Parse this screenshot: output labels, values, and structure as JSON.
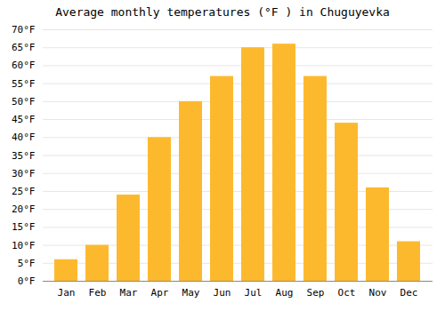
{
  "chart_data": {
    "type": "bar",
    "title": "Average monthly temperatures (°F ) in Chuguyevka",
    "categories": [
      "Jan",
      "Feb",
      "Mar",
      "Apr",
      "May",
      "Jun",
      "Jul",
      "Aug",
      "Sep",
      "Oct",
      "Nov",
      "Dec"
    ],
    "values": [
      6,
      10,
      24,
      40,
      50,
      57,
      65,
      66,
      57,
      44,
      26,
      11
    ],
    "color": "#FDB92E",
    "ylim": [
      0,
      70
    ],
    "yticks": [
      {
        "value": 0,
        "label": "0°F"
      },
      {
        "value": 5,
        "label": "5°F"
      },
      {
        "value": 10,
        "label": "10°F"
      },
      {
        "value": 15,
        "label": "15°F"
      },
      {
        "value": 20,
        "label": "20°F"
      },
      {
        "value": 25,
        "label": "25°F"
      },
      {
        "value": 30,
        "label": "30°F"
      },
      {
        "value": 35,
        "label": "35°F"
      },
      {
        "value": 40,
        "label": "40°F"
      },
      {
        "value": 45,
        "label": "45°F"
      },
      {
        "value": 50,
        "label": "50°F"
      },
      {
        "value": 55,
        "label": "55°F"
      },
      {
        "value": 60,
        "label": "60°F"
      },
      {
        "value": 65,
        "label": "65°F"
      },
      {
        "value": 70,
        "label": "70°F"
      }
    ],
    "grid": true
  }
}
